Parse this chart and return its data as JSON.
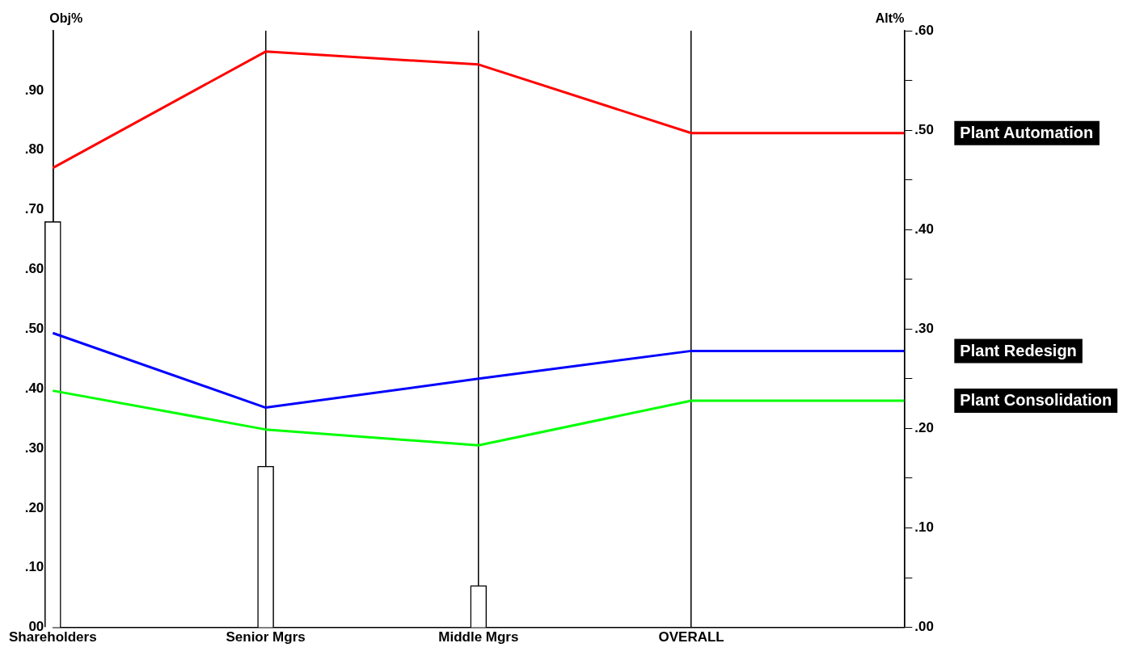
{
  "chart_data": {
    "type": "line",
    "ylabel": "Obj%",
    "y2label": "Alt%",
    "categories": [
      "Shareholders",
      "Senior Mgrs",
      "Middle Mgrs",
      "OVERALL",
      null
    ],
    "series": [
      {
        "type": "bar",
        "color": "#ffffff",
        "values": [
          0.68,
          0.27,
          0.07,
          null,
          null
        ]
      },
      {
        "name": "Plant Automation",
        "color": "#ff0000",
        "axis": "y2",
        "values": [
          0.462,
          0.579,
          0.566,
          0.497,
          0.497
        ]
      },
      {
        "name": "Plant Redesign",
        "color": "#0000ff",
        "axis": "y2",
        "values": [
          0.296,
          0.221,
          0.25,
          0.278,
          0.278
        ]
      },
      {
        "name": "Plant Consolidation",
        "color": "#00ff00",
        "axis": "y2",
        "values": [
          0.238,
          0.199,
          0.183,
          0.228,
          0.228
        ]
      }
    ],
    "ylim": [
      0,
      1.0
    ],
    "yticks": [
      {
        "value": 0,
        "label": "00"
      },
      {
        "value": 0.1,
        "label": ".10"
      },
      {
        "value": 0.2,
        "label": ".20"
      },
      {
        "value": 0.3,
        "label": ".30"
      },
      {
        "value": 0.4,
        "label": ".40"
      },
      {
        "value": 0.5,
        "label": ".50"
      },
      {
        "value": 0.6,
        "label": ".60"
      },
      {
        "value": 0.7,
        "label": ".70"
      },
      {
        "value": 0.8,
        "label": ".80"
      },
      {
        "value": 0.9,
        "label": ".90"
      },
      {
        "value": 1.0,
        "label": null
      }
    ],
    "y2lim": [
      0,
      0.6
    ],
    "y2ticks": [
      {
        "value": 0,
        "label": ".00"
      },
      {
        "value": 0.05,
        "label": null
      },
      {
        "value": 0.1,
        "label": ".10"
      },
      {
        "value": 0.15,
        "label": null
      },
      {
        "value": 0.2,
        "label": ".20"
      },
      {
        "value": 0.25,
        "label": null
      },
      {
        "value": 0.3,
        "label": ".30"
      },
      {
        "value": 0.35,
        "label": null
      },
      {
        "value": 0.4,
        "label": ".40"
      },
      {
        "value": 0.45,
        "label": null
      },
      {
        "value": 0.5,
        "label": ".50"
      },
      {
        "value": 0.55,
        "label": null
      },
      {
        "value": 0.6,
        "label": ".60"
      }
    ],
    "grid": "x",
    "legend": false,
    "marker": "none",
    "line_style": "solid"
  }
}
